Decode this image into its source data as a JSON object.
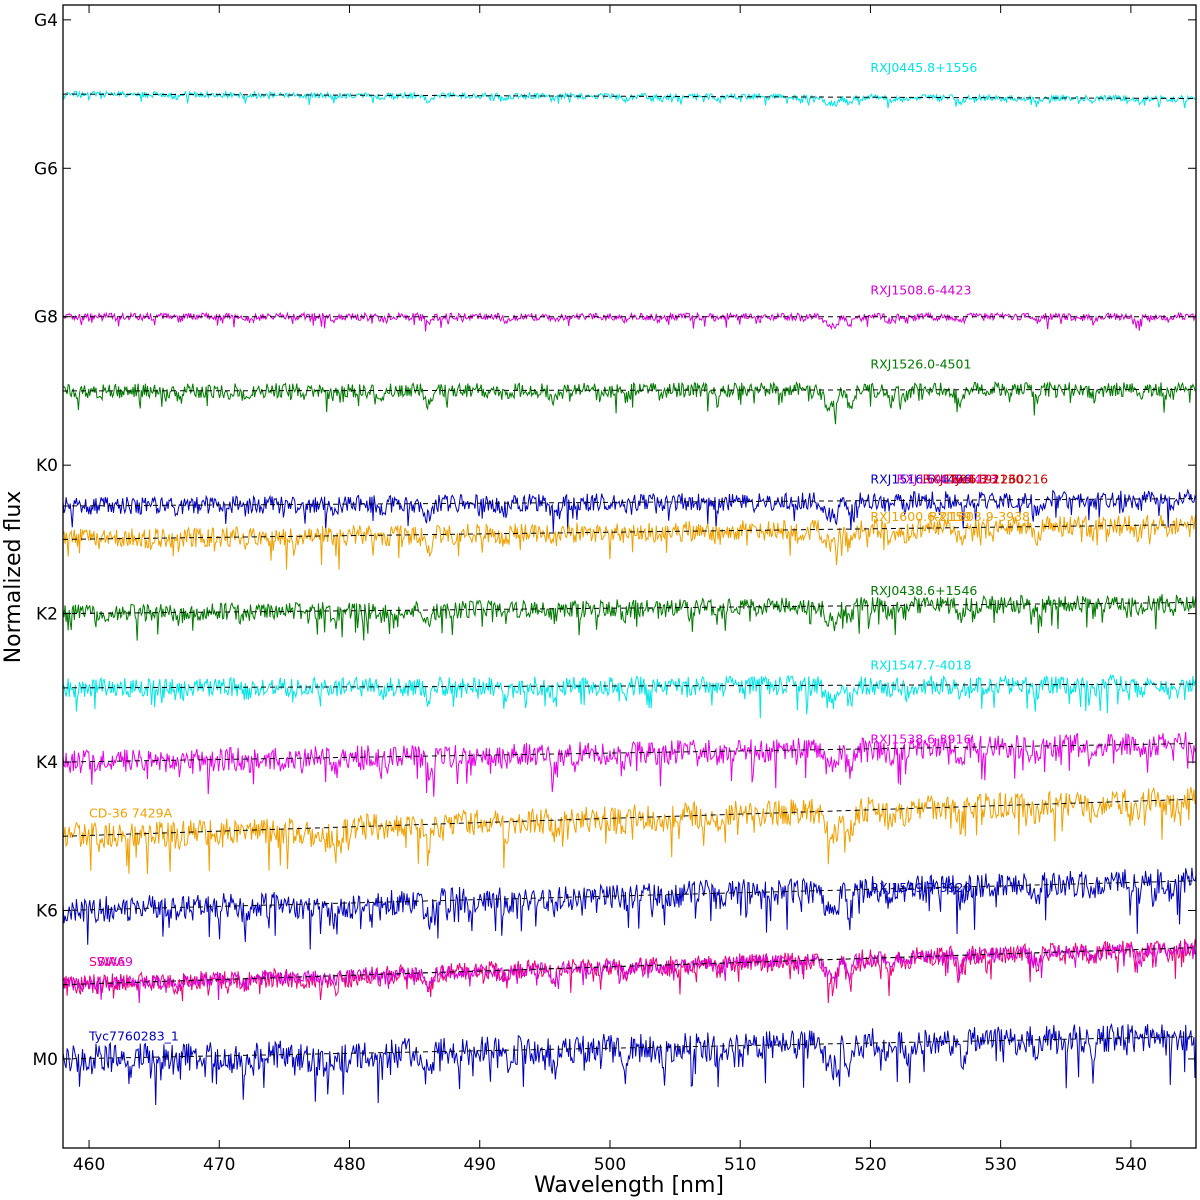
{
  "chart_data": {
    "type": "line",
    "title": "",
    "xlabel": "Wavelength [nm]",
    "ylabel": "Normalized flux",
    "xlim": [
      458,
      545
    ],
    "x_ticks": [
      460,
      470,
      480,
      490,
      500,
      510,
      520,
      530,
      540
    ],
    "x_tick_labels": [
      "460",
      "470",
      "480",
      "490",
      "500",
      "510",
      "520",
      "530",
      "540"
    ],
    "y_ticks": [
      {
        "label": "G4",
        "level": 0
      },
      {
        "label": "G6",
        "level": 2
      },
      {
        "label": "G8",
        "level": 4
      },
      {
        "label": "K0",
        "level": 6
      },
      {
        "label": "K2",
        "level": 8
      },
      {
        "label": "K4",
        "level": 10
      },
      {
        "label": "K6",
        "level": 12
      },
      {
        "label": "M0",
        "level": 14
      }
    ],
    "ylim_levels": [
      -0.2,
      15.2
    ],
    "grid": false,
    "legend": "none",
    "series": [
      {
        "name": "RXJ0445.8+1556",
        "color": "#00e5e5",
        "label_x": 520,
        "label_level": 0.7,
        "level": 1.0,
        "cont_start": 1.0,
        "cont_end": 1.06,
        "noise": 0.04,
        "depth": 0.25,
        "seed": 11
      },
      {
        "name": "RXJ1508.6-4423",
        "color": "#d600d6",
        "label_x": 520,
        "label_level": 3.7,
        "level": 4.0,
        "cont_start": 4.0,
        "cont_end": 4.0,
        "noise": 0.05,
        "depth": 0.3,
        "seed": 23
      },
      {
        "name": "RXJ1526.0-4501",
        "color": "#007a00",
        "label_x": 520,
        "label_level": 4.7,
        "level": 5.0,
        "cont_start": 5.0,
        "cont_end": 4.98,
        "noise": 0.1,
        "depth": 0.6,
        "seed": 37
      },
      {
        "name": "RXJ1516.6-4406",
        "color": "#0000bb",
        "label_x": 520,
        "label_level": 6.25,
        "level": 6.55,
        "cont_start": 6.55,
        "cont_end": 6.45,
        "noise": 0.12,
        "depth": 0.6,
        "seed": 41
      },
      {
        "name": "RXJ1508.6-4423",
        "color": "#d600d6",
        "label_x": 522,
        "label_level": 6.25,
        "level": null,
        "cont_start": null,
        "cont_end": null,
        "noise": null,
        "depth": null,
        "seed": null
      },
      {
        "name": "RXJ1604.3-2130",
        "color": "#cc0000",
        "label_x": 524,
        "label_level": 6.25,
        "level": null,
        "cont_start": null,
        "cont_end": null,
        "noise": null,
        "depth": null,
        "seed": null
      },
      {
        "name": "Tyc6191260216",
        "color": "#cc0000",
        "label_x": 526,
        "label_level": 6.25,
        "level": null,
        "cont_start": null,
        "cont_end": null,
        "noise": null,
        "depth": null,
        "seed": null
      },
      {
        "name": "RXJ1600.6-2159",
        "color": "#f0a000",
        "label_x": 520,
        "label_level": 6.75,
        "level": 7.0,
        "cont_start": 7.0,
        "cont_end": 6.8,
        "noise": 0.14,
        "depth": 0.6,
        "seed": 53
      },
      {
        "name": "RXJ1603.9-3938",
        "color": "#f0a000",
        "label_x": 524.5,
        "label_level": 6.75,
        "level": null,
        "cont_start": null,
        "cont_end": null,
        "noise": null,
        "depth": null,
        "seed": null
      },
      {
        "name": "RXJ0438.6+1546",
        "color": "#007a00",
        "label_x": 520,
        "label_level": 7.75,
        "level": 8.0,
        "cont_start": 8.0,
        "cont_end": 7.85,
        "noise": 0.12,
        "depth": 0.6,
        "seed": 67
      },
      {
        "name": "RXJ1547.7-4018",
        "color": "#00e5e5",
        "label_x": 520,
        "label_level": 8.75,
        "level": 9.0,
        "cont_start": 9.0,
        "cont_end": 8.95,
        "noise": 0.13,
        "depth": 0.6,
        "seed": 71
      },
      {
        "name": "RXJ1538.6-3916",
        "color": "#e600e6",
        "label_x": 520,
        "label_level": 9.75,
        "level": 10.0,
        "cont_start": 10.0,
        "cont_end": 9.75,
        "noise": 0.16,
        "depth": 0.7,
        "seed": 83
      },
      {
        "name": "CD-36 7429A",
        "color": "#f0a000",
        "label_x": 460,
        "label_level": 10.75,
        "level": 11.0,
        "cont_start": 11.0,
        "cont_end": 10.5,
        "noise": 0.18,
        "depth": 0.8,
        "seed": 97
      },
      {
        "name": "RXJ1549.7-3920",
        "color": "#0000bb",
        "label_x": 520,
        "label_level": 11.75,
        "level": 12.0,
        "cont_start": 12.0,
        "cont_end": 11.6,
        "noise": 0.18,
        "depth": 0.8,
        "seed": 101
      },
      {
        "name": "SWA6",
        "color": "#ee0077",
        "label_x": 460,
        "label_level": 12.75,
        "level": 13.0,
        "cont_start": 13.0,
        "cont_end": 12.5,
        "noise": 0.13,
        "depth": 0.8,
        "seed": 113
      },
      {
        "name": "SWA9",
        "color": "#d600d6",
        "label_x": 460.6,
        "label_level": 12.75,
        "level": 13.0,
        "cont_start": 13.0,
        "cont_end": 12.5,
        "noise": 0.09,
        "depth": 0.6,
        "seed": 127
      },
      {
        "name": "Tyc7760283_1",
        "color": "#0000bb",
        "label_x": 460,
        "label_level": 13.75,
        "level": 14.0,
        "cont_start": 14.0,
        "cont_end": 13.7,
        "noise": 0.2,
        "depth": 0.9,
        "seed": 131
      }
    ]
  }
}
